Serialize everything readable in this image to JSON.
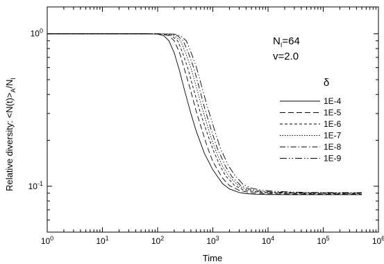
{
  "chart_data": {
    "type": "line",
    "title": "",
    "xlabel": "Time",
    "ylabel_main": "Relative diversity: <N(t)>",
    "ylabel_sub_a": "A",
    "ylabel_slash": "/N",
    "ylabel_sub_i": "I",
    "xscale": "log",
    "yscale": "log",
    "xlim": [
      1,
      1000000
    ],
    "ylim": [
      0.05,
      1.5
    ],
    "x_ticks": [
      {
        "value": 1,
        "base": "10",
        "exp": "0"
      },
      {
        "value": 10,
        "base": "10",
        "exp": "1"
      },
      {
        "value": 100,
        "base": "10",
        "exp": "2"
      },
      {
        "value": 1000,
        "base": "10",
        "exp": "3"
      },
      {
        "value": 10000,
        "base": "10",
        "exp": "4"
      },
      {
        "value": 100000,
        "base": "10",
        "exp": "5"
      },
      {
        "value": 1000000,
        "base": "10",
        "exp": "6"
      }
    ],
    "y_ticks": [
      {
        "value": 1,
        "base": "10",
        "exp": "0"
      },
      {
        "value": 0.1,
        "base": "10",
        "exp": "-1"
      }
    ],
    "annotations": {
      "n_main": "N",
      "n_sub": "I",
      "n_val": "=64",
      "v_text": "v=2.0"
    },
    "legend_title": "δ",
    "legend_position": "right",
    "series": [
      {
        "name": "1E-4",
        "dash": "",
        "x": [
          1,
          50,
          100,
          130,
          160,
          200,
          250,
          300,
          400,
          500,
          700,
          1000,
          1500,
          2000,
          3000,
          4000,
          6000,
          10000,
          30000,
          100000,
          500000
        ],
        "y": [
          1,
          1,
          0.995,
          0.97,
          0.9,
          0.75,
          0.57,
          0.44,
          0.3,
          0.23,
          0.165,
          0.128,
          0.104,
          0.096,
          0.091,
          0.0895,
          0.0885,
          0.0882,
          0.088,
          0.088,
          0.088
        ]
      },
      {
        "name": "1E-5",
        "dash": "8,4",
        "x": [
          1,
          60,
          120,
          160,
          200,
          250,
          300,
          400,
          500,
          600,
          800,
          1000,
          1500,
          2000,
          3000,
          5000,
          8000,
          15000,
          50000,
          200000,
          500000
        ],
        "y": [
          1,
          1,
          0.995,
          0.97,
          0.9,
          0.75,
          0.6,
          0.42,
          0.31,
          0.25,
          0.18,
          0.145,
          0.113,
          0.101,
          0.094,
          0.0905,
          0.0895,
          0.089,
          0.0888,
          0.0887,
          0.0887
        ]
      },
      {
        "name": "1E-6",
        "dash": "4,3",
        "x": [
          1,
          70,
          140,
          180,
          230,
          280,
          350,
          450,
          600,
          800,
          1000,
          1300,
          1700,
          2500,
          3500,
          5000,
          8000,
          15000,
          50000,
          200000,
          500000
        ],
        "y": [
          1,
          1,
          0.995,
          0.97,
          0.9,
          0.76,
          0.6,
          0.43,
          0.3,
          0.22,
          0.175,
          0.14,
          0.117,
          0.101,
          0.095,
          0.0925,
          0.091,
          0.0903,
          0.0898,
          0.0897,
          0.0897
        ]
      },
      {
        "name": "1E-7",
        "dash": "1.5,2",
        "x": [
          1,
          80,
          160,
          200,
          260,
          320,
          400,
          500,
          650,
          850,
          1100,
          1500,
          2000,
          3000,
          4000,
          6000,
          10000,
          20000,
          50000,
          200000,
          500000
        ],
        "y": [
          1,
          1,
          0.995,
          0.97,
          0.9,
          0.75,
          0.6,
          0.45,
          0.32,
          0.23,
          0.175,
          0.135,
          0.115,
          0.1,
          0.0955,
          0.0925,
          0.0912,
          0.0905,
          0.0902,
          0.09,
          0.09
        ]
      },
      {
        "name": "1E-8",
        "dash": "8,3,1.5,3",
        "x": [
          1,
          90,
          180,
          230,
          290,
          360,
          450,
          560,
          720,
          950,
          1200,
          1700,
          2200,
          3200,
          4500,
          7000,
          12000,
          25000,
          60000,
          200000,
          500000
        ],
        "y": [
          1,
          1,
          0.995,
          0.97,
          0.9,
          0.75,
          0.6,
          0.45,
          0.32,
          0.23,
          0.178,
          0.135,
          0.116,
          0.101,
          0.096,
          0.093,
          0.0915,
          0.0908,
          0.0905,
          0.0903,
          0.0903
        ]
      },
      {
        "name": "1E-9",
        "dash": "10,3,1.5,3,1.5,3",
        "x": [
          1,
          100,
          200,
          260,
          330,
          400,
          500,
          620,
          800,
          1050,
          1350,
          1900,
          2500,
          3500,
          5000,
          8000,
          14000,
          30000,
          70000,
          200000,
          500000
        ],
        "y": [
          1,
          1,
          0.995,
          0.97,
          0.9,
          0.76,
          0.61,
          0.46,
          0.33,
          0.24,
          0.18,
          0.137,
          0.118,
          0.103,
          0.097,
          0.094,
          0.0925,
          0.0915,
          0.091,
          0.0908,
          0.0908
        ]
      }
    ]
  }
}
